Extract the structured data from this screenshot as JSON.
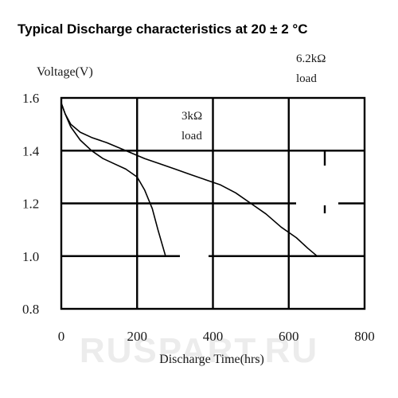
{
  "chart_data": {
    "type": "line",
    "title": "Typical Discharge characteristics at 20 ± 2 °C",
    "ylabel": "Voltage(V)",
    "xlabel": "Discharge Time(hrs)",
    "xlim": [
      0,
      800
    ],
    "ylim": [
      0.8,
      1.6
    ],
    "x_ticks": [
      "0",
      "200",
      "400",
      "600",
      "800"
    ],
    "y_ticks": [
      "1.6",
      "1.4",
      "1.2",
      "1.0",
      "0.8"
    ],
    "grid": true,
    "series": [
      {
        "name": "3kΩ load",
        "x": [
          0,
          10,
          25,
          50,
          80,
          110,
          140,
          170,
          200,
          220,
          240,
          255,
          265,
          275
        ],
        "y": [
          1.58,
          1.54,
          1.49,
          1.44,
          1.4,
          1.37,
          1.35,
          1.33,
          1.3,
          1.25,
          1.18,
          1.1,
          1.05,
          1.0
        ]
      },
      {
        "name": "6.2kΩ load",
        "x": [
          0,
          10,
          25,
          50,
          80,
          120,
          170,
          220,
          260,
          300,
          340,
          380,
          420,
          460,
          500,
          540,
          580,
          620,
          650,
          675
        ],
        "y": [
          1.58,
          1.54,
          1.5,
          1.47,
          1.45,
          1.43,
          1.4,
          1.37,
          1.35,
          1.33,
          1.31,
          1.29,
          1.27,
          1.24,
          1.2,
          1.16,
          1.11,
          1.07,
          1.03,
          1.0
        ]
      }
    ],
    "annotations": [
      {
        "line1": "3kΩ",
        "line2": "load"
      },
      {
        "line1": "6.2kΩ",
        "line2": "load"
      }
    ],
    "watermark": "RUSPART.RU"
  }
}
